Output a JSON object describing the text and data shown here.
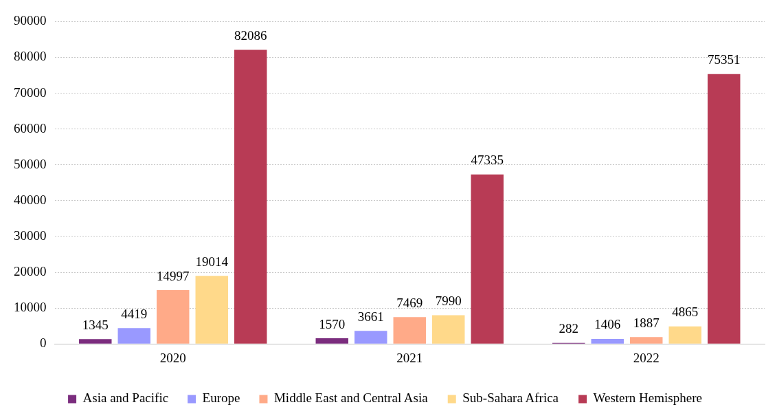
{
  "chart_data": {
    "type": "bar",
    "categories": [
      "2020",
      "2021",
      "2022"
    ],
    "series": [
      {
        "name": "Asia and Pacific",
        "color": "#7b2d7e",
        "values": [
          1345,
          1570,
          282
        ]
      },
      {
        "name": "Europe",
        "color": "#9999ff",
        "values": [
          4419,
          3661,
          1406
        ]
      },
      {
        "name": "Middle East and Central Asia",
        "color": "#ffaa88",
        "values": [
          14997,
          7469,
          1887
        ]
      },
      {
        "name": "Sub-Sahara Africa",
        "color": "#ffd98a",
        "values": [
          19014,
          7990,
          4865
        ]
      },
      {
        "name": "Western Hemisphere",
        "color": "#b83b55",
        "values": [
          82086,
          47335,
          75351
        ]
      }
    ],
    "ylim": [
      0,
      90000
    ],
    "yticks": [
      0,
      10000,
      20000,
      30000,
      40000,
      50000,
      60000,
      70000,
      80000,
      90000
    ],
    "grid": "y",
    "legend": "bottom",
    "data_labels": true
  }
}
